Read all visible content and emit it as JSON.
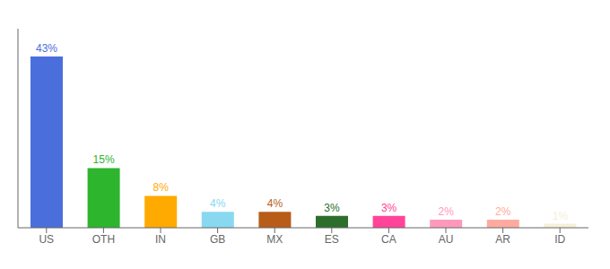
{
  "chart_data": {
    "type": "bar",
    "categories": [
      "US",
      "OTH",
      "IN",
      "GB",
      "MX",
      "ES",
      "CA",
      "AU",
      "AR",
      "ID"
    ],
    "values": [
      43,
      15,
      8,
      4,
      4,
      3,
      3,
      2,
      2,
      1
    ],
    "value_labels": [
      "43%",
      "15%",
      "8%",
      "4%",
      "4%",
      "3%",
      "3%",
      "2%",
      "2%",
      "1%"
    ],
    "data_labels": true,
    "colors": [
      "#4a6fdc",
      "#2db52d",
      "#ffaa00",
      "#88d8f0",
      "#b85c1a",
      "#2d6e2d",
      "#ff4499",
      "#ff99bb",
      "#ffaaa0",
      "#f5f0d8"
    ],
    "ylim": [
      0,
      50
    ],
    "grid": false,
    "tick_labels": "x"
  }
}
